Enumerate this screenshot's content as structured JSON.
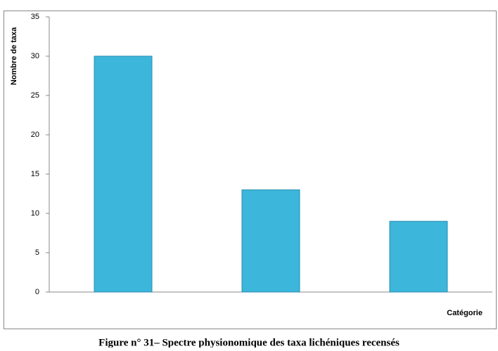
{
  "chart_data": {
    "type": "bar",
    "caption": "Figure n° 31– Spectre physionomique des taxa lichéniques recensés",
    "y_label": "Nombre de taxa",
    "x_label": "Catégorie",
    "categories": [
      null,
      null,
      null
    ],
    "values": [
      30,
      13,
      9
    ],
    "color": "#3cb6da",
    "ylim": [
      0,
      35
    ],
    "yticks": [
      0,
      5,
      10,
      15,
      20,
      25,
      30,
      35
    ],
    "grid": false
  }
}
